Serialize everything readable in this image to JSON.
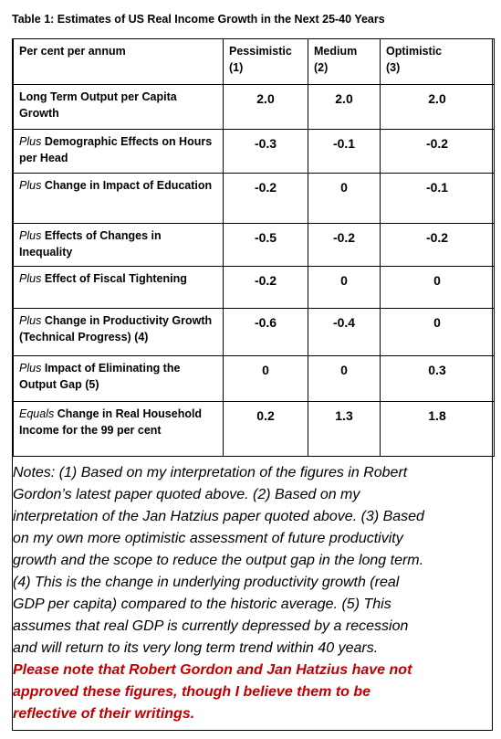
{
  "title": "Table 1: Estimates of US Real Income Growth in the Next 25-40 Years",
  "table": {
    "header": {
      "label": "Per cent per annum",
      "columns": [
        {
          "name": "Pessimistic",
          "note": "(1)"
        },
        {
          "name": "Medium",
          "note": "(2)"
        },
        {
          "name": "Optimistic",
          "note": "(3)"
        }
      ]
    },
    "rows": [
      {
        "label": "Long Term Output per Capita Growth",
        "values": [
          "2.0",
          "2.0",
          "2.0"
        ]
      },
      {
        "prefix": "Plus",
        "label": "Demographic Effects on Hours per Head",
        "values": [
          "-0.3",
          "-0.1",
          "-0.2"
        ]
      },
      {
        "prefix": "Plus",
        "label": "Change in Impact of Education",
        "values": [
          "-0.2",
          "0",
          "-0.1"
        ]
      },
      {
        "prefix": "Plus",
        "label": "Effects of Changes in Inequality",
        "values": [
          "-0.5",
          "-0.2",
          "-0.2"
        ]
      },
      {
        "prefix": "Plus",
        "label": "Effect of Fiscal Tightening",
        "values": [
          "-0.2",
          "0",
          "0"
        ]
      },
      {
        "prefix": "Plus",
        "label": "Change in Productivity Growth (Technical Progress) (4)",
        "values": [
          "-0.6",
          "-0.4",
          "0"
        ]
      },
      {
        "prefix": "Plus",
        "label": "Impact of Eliminating the Output Gap (5)",
        "values": [
          "0",
          "0",
          "0.3"
        ]
      },
      {
        "prefix": "Equals",
        "label": "Change in Real Household Income for the 99 per cent",
        "values": [
          "0.2",
          "1.3",
          "1.8"
        ]
      }
    ]
  },
  "notes": [
    "Notes: (1) Based on my interpretation of the figures in Robert",
    "Gordon’s latest paper quoted above. (2) Based on my",
    "interpretation of the Jan Hatzius paper quoted above. (3) Based",
    "on my own more optimistic assessment of future productivity",
    "growth and the scope to reduce the output gap in the long term.",
    "(4) This is the change in underlying productivity growth (real",
    "GDP per capita) compared to the historic average. (5) This",
    "assumes that real GDP is currently depressed by a recession",
    "and will return to its very long term trend within 40 years."
  ],
  "disclaimer": [
    "Please note that Robert Gordon and Jan Hatzius have not",
    "approved these figures, though I believe them to be",
    "reflective of their writings."
  ]
}
